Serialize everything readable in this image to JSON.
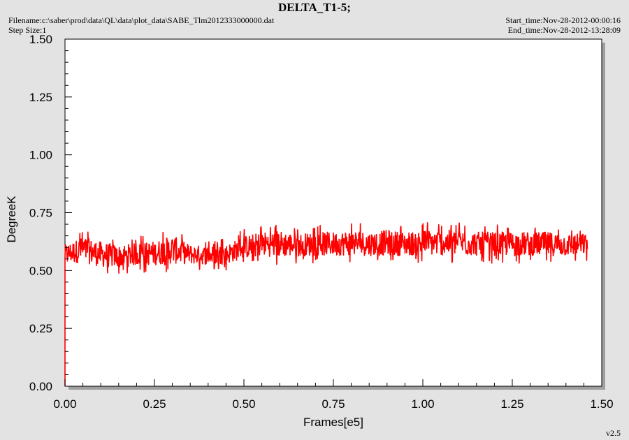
{
  "header": {
    "title": "DELTA_T1-5;",
    "filename": "Filename:c:\\saber\\prod\\data\\QL\\data\\plot_data\\SABE_Tlm2012333000000.dat",
    "step_size": "Step Size:1",
    "start_time": "Start_time:Nov-28-2012-00:00:16",
    "end_time": "End_time:Nov-28-2012-13:28:09"
  },
  "footer": {
    "version": "v2.5"
  },
  "colors": {
    "series": "#ff0000",
    "plot_bg": "#ffffff",
    "page_bg": "#e3e3e3"
  },
  "chart_data": {
    "type": "line",
    "title": "DELTA_T1-5;",
    "xlabel": "Frames[e5]",
    "ylabel": "DegreeK",
    "xlim": [
      0,
      1.5
    ],
    "ylim": [
      0,
      1.5
    ],
    "xticks": [
      "0.00",
      "0.25",
      "0.50",
      "0.75",
      "1.00",
      "1.25",
      "1.50"
    ],
    "yticks": [
      "0.00",
      "0.25",
      "0.50",
      "0.75",
      "1.00",
      "1.25",
      "1.50"
    ],
    "grid": false,
    "legend": "none",
    "series": [
      {
        "color": "#ff0000",
        "note_x_range": [
          0,
          1.46
        ],
        "x": [
          0.0,
          0.05,
          0.1,
          0.15,
          0.2,
          0.25,
          0.3,
          0.35,
          0.4,
          0.45,
          0.5,
          0.55,
          0.6,
          0.65,
          0.7,
          0.75,
          0.8,
          0.85,
          0.9,
          0.95,
          1.0,
          1.05,
          1.1,
          1.15,
          1.2,
          1.25,
          1.3,
          1.35,
          1.4,
          1.46
        ],
        "y_min": [
          0.5,
          0.5,
          0.48,
          0.48,
          0.49,
          0.49,
          0.49,
          0.5,
          0.5,
          0.5,
          0.52,
          0.53,
          0.52,
          0.53,
          0.53,
          0.53,
          0.53,
          0.53,
          0.53,
          0.53,
          0.53,
          0.53,
          0.53,
          0.53,
          0.53,
          0.53,
          0.53,
          0.53,
          0.53,
          0.54
        ],
        "y_max": [
          0.64,
          0.68,
          0.66,
          0.64,
          0.65,
          0.66,
          0.69,
          0.64,
          0.63,
          0.64,
          0.68,
          0.7,
          0.71,
          0.69,
          0.7,
          0.7,
          0.71,
          0.7,
          0.71,
          0.7,
          0.71,
          0.71,
          0.71,
          0.7,
          0.7,
          0.7,
          0.7,
          0.7,
          0.69,
          0.69
        ]
      }
    ]
  }
}
